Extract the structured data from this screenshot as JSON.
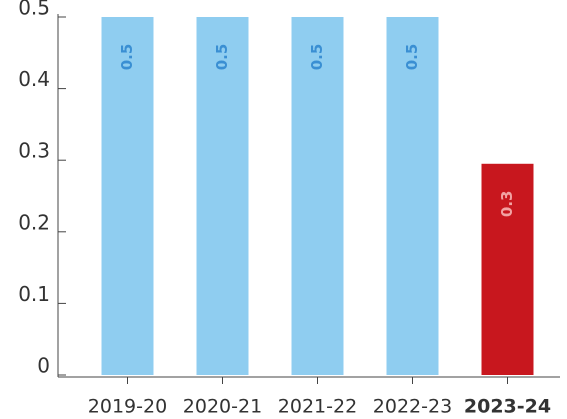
{
  "chart_data": {
    "type": "bar",
    "categories": [
      "2019-20",
      "2020-21",
      "2021-22",
      "2022-23",
      "2023-24"
    ],
    "values": [
      0.5,
      0.5,
      0.5,
      0.5,
      0.295
    ],
    "value_labels": [
      "0.5",
      "0.5",
      "0.5",
      "0.5",
      "0.3"
    ],
    "colors": [
      "#8fcdf0",
      "#8fcdf0",
      "#8fcdf0",
      "#8fcdf0",
      "#c8171e"
    ],
    "label_colors": [
      "#3a8fd3",
      "#3a8fd3",
      "#3a8fd3",
      "#3a8fd3",
      "#f2a3a3"
    ],
    "bold_last_category": true,
    "ylim": [
      0,
      0.5
    ],
    "yticks": [
      0,
      0.1,
      0.2,
      0.3,
      0.4,
      0.5
    ]
  }
}
